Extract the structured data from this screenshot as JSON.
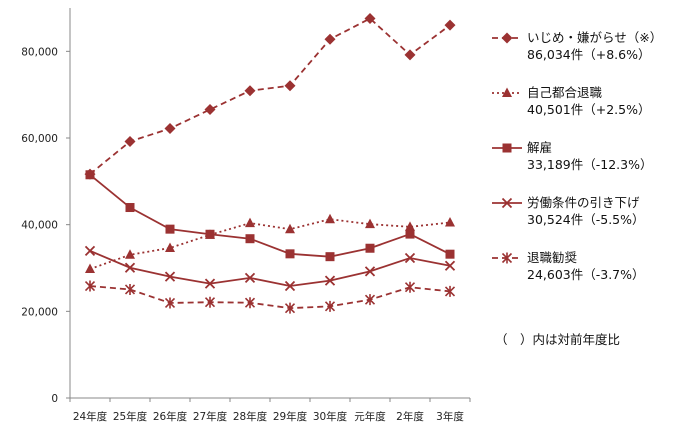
{
  "chart_data": {
    "type": "line",
    "title": "",
    "xlabel": "",
    "ylabel": "",
    "ylim": [
      0,
      90000
    ],
    "yticks": [
      0,
      20000,
      40000,
      60000,
      80000
    ],
    "ytick_labels": [
      "0",
      "20,000",
      "40,000",
      "60,000",
      "80,000"
    ],
    "grid": false,
    "legend_position": "right",
    "categories": [
      "24年度",
      "25年度",
      "26年度",
      "27年度",
      "28年度",
      "29年度",
      "30年度",
      "元年度",
      "2年度",
      "3年度"
    ],
    "color": "#9b3232",
    "series": [
      {
        "name": "いじめ・嫌がらせ（※）",
        "legend_value": "86,034件（+8.6%）",
        "marker": "diamond",
        "line": "dashed",
        "values": [
          51670,
          59197,
          62191,
          66566,
          70917,
          72067,
          82797,
          87570,
          79190,
          86034
        ]
      },
      {
        "name": "自己都合退職",
        "legend_value": "40,501件（+2.5%）",
        "marker": "triangle",
        "line": "dotted",
        "values": [
          29763,
          33049,
          34626,
          37648,
          40364,
          38954,
          41258,
          40116,
          39498,
          40501
        ]
      },
      {
        "name": "解雇",
        "legend_value": "33,189件（-12.3%）",
        "marker": "square",
        "line": "solid",
        "values": [
          51515,
          43956,
          38966,
          37787,
          36760,
          33269,
          32614,
          34561,
          37826,
          33189
        ]
      },
      {
        "name": "労働条件の引き下げ",
        "legend_value": "30,524件（-5.5%）",
        "marker": "x",
        "line": "solid",
        "values": [
          33955,
          30067,
          28015,
          26392,
          27723,
          25841,
          27089,
          29229,
          32301,
          30524
        ]
      },
      {
        "name": "退職勧奨",
        "legend_value": "24,603件（-3.7%）",
        "marker": "asterisk",
        "line": "dashed",
        "values": [
          25838,
          25041,
          21928,
          22110,
          21987,
          20736,
          21153,
          22697,
          25560,
          24603
        ]
      }
    ],
    "note": "（　）内は対前年度比"
  }
}
